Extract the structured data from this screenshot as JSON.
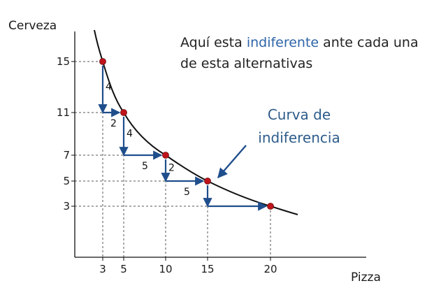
{
  "chart_data": {
    "type": "line",
    "xlabel": "Pizza",
    "ylabel": "Cerveza",
    "x_ticks": [
      3,
      5,
      10,
      15,
      20
    ],
    "y_ticks": [
      3,
      5,
      7,
      11,
      15
    ],
    "points": [
      {
        "x": 3,
        "y": 15
      },
      {
        "x": 5,
        "y": 11
      },
      {
        "x": 10,
        "y": 7
      },
      {
        "x": 15,
        "y": 5
      },
      {
        "x": 20,
        "y": 3
      }
    ],
    "steps": [
      {
        "dy": "4",
        "dx": "2"
      },
      {
        "dy": "4",
        "dx": "5"
      },
      {
        "dy": "2",
        "dx": "5"
      }
    ],
    "annotation": {
      "prefix": "Aquí esta ",
      "highlight": "indiferente",
      "suffix": " ante cada una",
      "line2": "de esta alternativas"
    },
    "curve_label": {
      "line1": "Curva de",
      "line2": "indiferencia"
    },
    "colors": {
      "curve": "#111111",
      "point": "#c0141b",
      "arrow": "#1f4e8c",
      "highlight": "#2e64a8",
      "curve_label": "#2e5c8a",
      "guide": "#555555"
    }
  }
}
